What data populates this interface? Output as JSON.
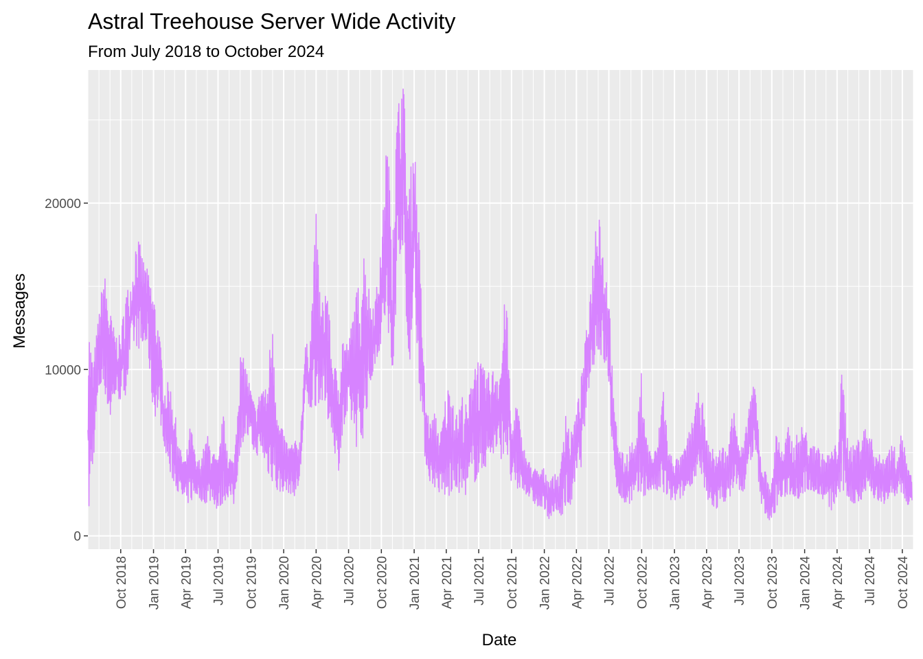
{
  "chart_data": {
    "type": "line",
    "title": "Astral Treehouse Server Wide Activity",
    "subtitle": "From July 2018 to October 2024",
    "xlabel": "Date",
    "ylabel": "Messages",
    "xlim": [
      "2018-07-01",
      "2024-11-01"
    ],
    "ylim": [
      -800,
      28000
    ],
    "grid": true,
    "legend": "none",
    "colors": {
      "line": "#D783FF",
      "panel": "#EBEBEB",
      "grid": "#FFFFFF",
      "tick_text": "#4D4D4D",
      "tick_mark": "#333333"
    },
    "x_ticks": [
      {
        "date": "2018-10-01",
        "label": "Oct 2018"
      },
      {
        "date": "2019-01-01",
        "label": "Jan 2019"
      },
      {
        "date": "2019-04-01",
        "label": "Apr 2019"
      },
      {
        "date": "2019-07-01",
        "label": "Jul 2019"
      },
      {
        "date": "2019-10-01",
        "label": "Oct 2019"
      },
      {
        "date": "2020-01-01",
        "label": "Jan 2020"
      },
      {
        "date": "2020-04-01",
        "label": "Apr 2020"
      },
      {
        "date": "2020-07-01",
        "label": "Jul 2020"
      },
      {
        "date": "2020-10-01",
        "label": "Oct 2020"
      },
      {
        "date": "2021-01-01",
        "label": "Jan 2021"
      },
      {
        "date": "2021-04-01",
        "label": "Apr 2021"
      },
      {
        "date": "2021-07-01",
        "label": "Jul 2021"
      },
      {
        "date": "2021-10-01",
        "label": "Oct 2021"
      },
      {
        "date": "2022-01-01",
        "label": "Jan 2022"
      },
      {
        "date": "2022-04-01",
        "label": "Apr 2022"
      },
      {
        "date": "2022-07-01",
        "label": "Jul 2022"
      },
      {
        "date": "2022-10-01",
        "label": "Oct 2022"
      },
      {
        "date": "2023-01-01",
        "label": "Jan 2023"
      },
      {
        "date": "2023-04-01",
        "label": "Apr 2023"
      },
      {
        "date": "2023-07-01",
        "label": "Jul 2023"
      },
      {
        "date": "2023-10-01",
        "label": "Oct 2023"
      },
      {
        "date": "2024-01-01",
        "label": "Jan 2024"
      },
      {
        "date": "2024-04-01",
        "label": "Apr 2024"
      },
      {
        "date": "2024-07-01",
        "label": "Jul 2024"
      },
      {
        "date": "2024-10-01",
        "label": "Oct 2024"
      }
    ],
    "y_ticks": [
      {
        "value": 0,
        "label": "0"
      },
      {
        "value": 10000,
        "label": "10000"
      },
      {
        "value": 20000,
        "label": "20000"
      }
    ],
    "series": [
      {
        "values": [
          {
            "date": "2018-07-01",
            "low": 400,
            "high": 13600
          },
          {
            "date": "2018-07-15",
            "low": 4200,
            "high": 10400
          },
          {
            "date": "2018-08-01",
            "low": 8600,
            "high": 13400
          },
          {
            "date": "2018-08-15",
            "low": 9000,
            "high": 16100
          },
          {
            "date": "2018-09-01",
            "low": 6800,
            "high": 13600
          },
          {
            "date": "2018-09-15",
            "low": 8400,
            "high": 12200
          },
          {
            "date": "2018-10-01",
            "low": 8100,
            "high": 12000
          },
          {
            "date": "2018-10-15",
            "low": 8500,
            "high": 14800
          },
          {
            "date": "2018-11-01",
            "low": 11500,
            "high": 15300
          },
          {
            "date": "2018-11-15",
            "low": 11400,
            "high": 18400
          },
          {
            "date": "2018-12-01",
            "low": 11000,
            "high": 16800
          },
          {
            "date": "2018-12-15",
            "low": 11500,
            "high": 16000
          },
          {
            "date": "2019-01-01",
            "low": 7000,
            "high": 14800
          },
          {
            "date": "2019-01-15",
            "low": 7500,
            "high": 12700
          },
          {
            "date": "2019-02-01",
            "low": 5400,
            "high": 8900
          },
          {
            "date": "2019-02-15",
            "low": 3600,
            "high": 9400
          },
          {
            "date": "2019-03-01",
            "low": 3200,
            "high": 7600
          },
          {
            "date": "2019-03-15",
            "low": 2400,
            "high": 5300
          },
          {
            "date": "2019-04-01",
            "low": 1900,
            "high": 4600
          },
          {
            "date": "2019-04-15",
            "low": 2000,
            "high": 6800
          },
          {
            "date": "2019-05-01",
            "low": 2500,
            "high": 4400
          },
          {
            "date": "2019-05-15",
            "low": 2100,
            "high": 4800
          },
          {
            "date": "2019-06-01",
            "low": 1900,
            "high": 6100
          },
          {
            "date": "2019-06-15",
            "low": 2200,
            "high": 5200
          },
          {
            "date": "2019-07-01",
            "low": 1400,
            "high": 4500
          },
          {
            "date": "2019-07-15",
            "low": 2000,
            "high": 7400
          },
          {
            "date": "2019-08-01",
            "low": 2400,
            "high": 4900
          },
          {
            "date": "2019-08-15",
            "low": 1800,
            "high": 4500
          },
          {
            "date": "2019-09-01",
            "low": 5200,
            "high": 11000
          },
          {
            "date": "2019-09-15",
            "low": 6000,
            "high": 10500
          },
          {
            "date": "2019-10-01",
            "low": 5500,
            "high": 8800
          },
          {
            "date": "2019-10-15",
            "low": 4800,
            "high": 7600
          },
          {
            "date": "2019-11-01",
            "low": 5000,
            "high": 9300
          },
          {
            "date": "2019-11-15",
            "low": 3800,
            "high": 8700
          },
          {
            "date": "2019-12-01",
            "low": 3200,
            "high": 14300
          },
          {
            "date": "2019-12-15",
            "low": 2500,
            "high": 7100
          },
          {
            "date": "2020-01-01",
            "low": 2700,
            "high": 6200
          },
          {
            "date": "2020-01-15",
            "low": 2600,
            "high": 5500
          },
          {
            "date": "2020-02-01",
            "low": 2400,
            "high": 5700
          },
          {
            "date": "2020-02-15",
            "low": 3100,
            "high": 5800
          },
          {
            "date": "2020-03-01",
            "low": 8000,
            "high": 11400
          },
          {
            "date": "2020-03-15",
            "low": 7500,
            "high": 11800
          },
          {
            "date": "2020-04-01",
            "low": 7800,
            "high": 19400
          },
          {
            "date": "2020-04-15",
            "low": 8200,
            "high": 13600
          },
          {
            "date": "2020-05-01",
            "low": 7000,
            "high": 15800
          },
          {
            "date": "2020-05-15",
            "low": 6500,
            "high": 10800
          },
          {
            "date": "2020-06-01",
            "low": 3600,
            "high": 9800
          },
          {
            "date": "2020-06-15",
            "low": 6000,
            "high": 12300
          },
          {
            "date": "2020-07-01",
            "low": 7200,
            "high": 11500
          },
          {
            "date": "2020-07-15",
            "low": 6400,
            "high": 13800
          },
          {
            "date": "2020-08-01",
            "low": 4200,
            "high": 15600
          },
          {
            "date": "2020-08-15",
            "low": 6800,
            "high": 17700
          },
          {
            "date": "2020-09-01",
            "low": 9000,
            "high": 14000
          },
          {
            "date": "2020-09-15",
            "low": 10500,
            "high": 14500
          },
          {
            "date": "2020-10-01",
            "low": 11500,
            "high": 17300
          },
          {
            "date": "2020-10-15",
            "low": 13000,
            "high": 24100
          },
          {
            "date": "2020-11-01",
            "low": 7500,
            "high": 19800
          },
          {
            "date": "2020-11-15",
            "low": 16500,
            "high": 25700
          },
          {
            "date": "2020-12-01",
            "low": 17500,
            "high": 28000
          },
          {
            "date": "2020-12-15",
            "low": 9000,
            "high": 20500
          },
          {
            "date": "2021-01-01",
            "low": 14500,
            "high": 24200
          },
          {
            "date": "2021-01-15",
            "low": 9200,
            "high": 18000
          },
          {
            "date": "2021-02-01",
            "low": 4500,
            "high": 8200
          },
          {
            "date": "2021-02-15",
            "low": 3200,
            "high": 6800
          },
          {
            "date": "2021-03-01",
            "low": 2900,
            "high": 7500
          },
          {
            "date": "2021-03-15",
            "low": 2500,
            "high": 6000
          },
          {
            "date": "2021-04-01",
            "low": 2200,
            "high": 8800
          },
          {
            "date": "2021-04-15",
            "low": 2400,
            "high": 9400
          },
          {
            "date": "2021-05-01",
            "low": 2800,
            "high": 7200
          },
          {
            "date": "2021-05-15",
            "low": 2300,
            "high": 8600
          },
          {
            "date": "2021-06-01",
            "low": 2600,
            "high": 7600
          },
          {
            "date": "2021-06-15",
            "low": 3100,
            "high": 11000
          },
          {
            "date": "2021-07-01",
            "low": 3500,
            "high": 10800
          },
          {
            "date": "2021-07-15",
            "low": 4000,
            "high": 10000
          },
          {
            "date": "2021-08-01",
            "low": 4500,
            "high": 9800
          },
          {
            "date": "2021-08-15",
            "low": 5000,
            "high": 10200
          },
          {
            "date": "2021-09-01",
            "low": 4600,
            "high": 10400
          },
          {
            "date": "2021-09-15",
            "low": 5200,
            "high": 15400
          },
          {
            "date": "2021-10-01",
            "low": 3000,
            "high": 6400
          },
          {
            "date": "2021-10-15",
            "low": 2600,
            "high": 8300
          },
          {
            "date": "2021-11-01",
            "low": 2800,
            "high": 5600
          },
          {
            "date": "2021-11-15",
            "low": 2400,
            "high": 4600
          },
          {
            "date": "2021-12-01",
            "low": 2000,
            "high": 4200
          },
          {
            "date": "2021-12-15",
            "low": 1700,
            "high": 3900
          },
          {
            "date": "2022-01-01",
            "low": 1500,
            "high": 4100
          },
          {
            "date": "2022-01-15",
            "low": 1000,
            "high": 3500
          },
          {
            "date": "2022-02-01",
            "low": 1300,
            "high": 3700
          },
          {
            "date": "2022-02-15",
            "low": 1200,
            "high": 3800
          },
          {
            "date": "2022-03-01",
            "low": 1500,
            "high": 8200
          },
          {
            "date": "2022-03-15",
            "low": 1700,
            "high": 6000
          },
          {
            "date": "2022-04-01",
            "low": 3500,
            "high": 7500
          },
          {
            "date": "2022-04-15",
            "low": 4200,
            "high": 9600
          },
          {
            "date": "2022-05-01",
            "low": 8300,
            "high": 12800
          },
          {
            "date": "2022-05-15",
            "low": 10000,
            "high": 16000
          },
          {
            "date": "2022-06-01",
            "low": 11000,
            "high": 21300
          },
          {
            "date": "2022-06-15",
            "low": 10500,
            "high": 17000
          },
          {
            "date": "2022-07-01",
            "low": 9000,
            "high": 15000
          },
          {
            "date": "2022-07-15",
            "low": 3200,
            "high": 7800
          },
          {
            "date": "2022-08-01",
            "low": 2400,
            "high": 5300
          },
          {
            "date": "2022-08-15",
            "low": 1800,
            "high": 4700
          },
          {
            "date": "2022-09-01",
            "low": 2000,
            "high": 5800
          },
          {
            "date": "2022-09-15",
            "low": 2200,
            "high": 5400
          },
          {
            "date": "2022-10-01",
            "low": 2300,
            "high": 10200
          },
          {
            "date": "2022-10-15",
            "low": 2500,
            "high": 5800
          },
          {
            "date": "2022-11-01",
            "low": 2800,
            "high": 4800
          },
          {
            "date": "2022-11-15",
            "low": 2600,
            "high": 5600
          },
          {
            "date": "2022-12-01",
            "low": 2400,
            "high": 9500
          },
          {
            "date": "2022-12-15",
            "low": 2200,
            "high": 5100
          },
          {
            "date": "2023-01-01",
            "low": 2000,
            "high": 4800
          },
          {
            "date": "2023-01-15",
            "low": 2200,
            "high": 4600
          },
          {
            "date": "2023-02-01",
            "low": 2500,
            "high": 5400
          },
          {
            "date": "2023-02-15",
            "low": 3000,
            "high": 6600
          },
          {
            "date": "2023-03-01",
            "low": 3500,
            "high": 7800
          },
          {
            "date": "2023-03-15",
            "low": 3200,
            "high": 9200
          },
          {
            "date": "2023-04-01",
            "low": 2200,
            "high": 5800
          },
          {
            "date": "2023-04-15",
            "low": 1800,
            "high": 5300
          },
          {
            "date": "2023-05-01",
            "low": 1600,
            "high": 5000
          },
          {
            "date": "2023-05-15",
            "low": 2000,
            "high": 5500
          },
          {
            "date": "2023-06-01",
            "low": 2200,
            "high": 5000
          },
          {
            "date": "2023-06-15",
            "low": 2700,
            "high": 9400
          },
          {
            "date": "2023-07-01",
            "low": 2800,
            "high": 5200
          },
          {
            "date": "2023-07-15",
            "low": 2500,
            "high": 5500
          },
          {
            "date": "2023-08-01",
            "low": 4500,
            "high": 8500
          },
          {
            "date": "2023-08-15",
            "low": 5000,
            "high": 9200
          },
          {
            "date": "2023-09-01",
            "low": 2000,
            "high": 4500
          },
          {
            "date": "2023-09-15",
            "low": 1200,
            "high": 3800
          },
          {
            "date": "2023-10-01",
            "low": 600,
            "high": 3200
          },
          {
            "date": "2023-10-15",
            "low": 1800,
            "high": 6900
          },
          {
            "date": "2023-11-01",
            "low": 2200,
            "high": 4800
          },
          {
            "date": "2023-11-15",
            "low": 2500,
            "high": 6600
          },
          {
            "date": "2023-12-01",
            "low": 2400,
            "high": 5500
          },
          {
            "date": "2023-12-15",
            "low": 2200,
            "high": 6400
          },
          {
            "date": "2024-01-01",
            "low": 2600,
            "high": 6800
          },
          {
            "date": "2024-01-15",
            "low": 2800,
            "high": 5200
          },
          {
            "date": "2024-02-01",
            "low": 2600,
            "high": 5800
          },
          {
            "date": "2024-02-15",
            "low": 2300,
            "high": 5000
          },
          {
            "date": "2024-03-01",
            "low": 2000,
            "high": 4800
          },
          {
            "date": "2024-03-15",
            "low": 1500,
            "high": 5200
          },
          {
            "date": "2024-04-01",
            "low": 2200,
            "high": 5600
          },
          {
            "date": "2024-04-15",
            "low": 2600,
            "high": 10200
          },
          {
            "date": "2024-05-01",
            "low": 2300,
            "high": 5800
          },
          {
            "date": "2024-05-15",
            "low": 1800,
            "high": 5400
          },
          {
            "date": "2024-06-01",
            "low": 2000,
            "high": 6000
          },
          {
            "date": "2024-06-15",
            "low": 2400,
            "high": 6600
          },
          {
            "date": "2024-07-01",
            "low": 2800,
            "high": 6200
          },
          {
            "date": "2024-07-15",
            "low": 2200,
            "high": 5300
          },
          {
            "date": "2024-08-01",
            "low": 1800,
            "high": 4800
          },
          {
            "date": "2024-08-15",
            "low": 2000,
            "high": 5000
          },
          {
            "date": "2024-09-01",
            "low": 2400,
            "high": 5500
          },
          {
            "date": "2024-09-15",
            "low": 2200,
            "high": 5200
          },
          {
            "date": "2024-10-01",
            "low": 2500,
            "high": 6400
          },
          {
            "date": "2024-10-15",
            "low": 1800,
            "high": 4200
          },
          {
            "date": "2024-10-28",
            "low": 1800,
            "high": 3500
          }
        ]
      }
    ]
  }
}
